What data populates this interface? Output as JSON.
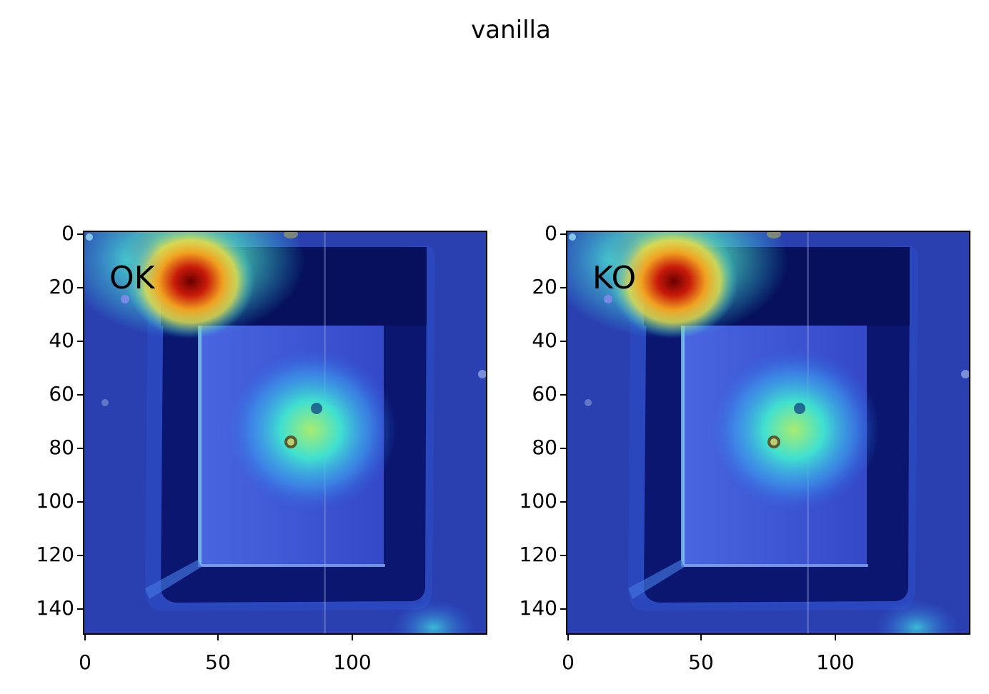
{
  "figure": {
    "title": "vanilla"
  },
  "panels": [
    {
      "label": "OK"
    },
    {
      "label": "KO"
    }
  ],
  "axes": {
    "y_ticks": [
      "0",
      "20",
      "40",
      "60",
      "80",
      "100",
      "120",
      "140"
    ],
    "x_ticks": [
      "0",
      "50",
      "100"
    ],
    "y_values": [
      0,
      20,
      40,
      60,
      80,
      100,
      120,
      140
    ],
    "x_values": [
      0,
      50,
      100
    ],
    "range": [
      0,
      150
    ]
  },
  "colors": {
    "heatmap_cold": "#1a2fa0",
    "heatmap_cyan": "#35d8e8",
    "heatmap_yellow": "#e8e04a",
    "heatmap_hot": "#8a0a0a"
  }
}
